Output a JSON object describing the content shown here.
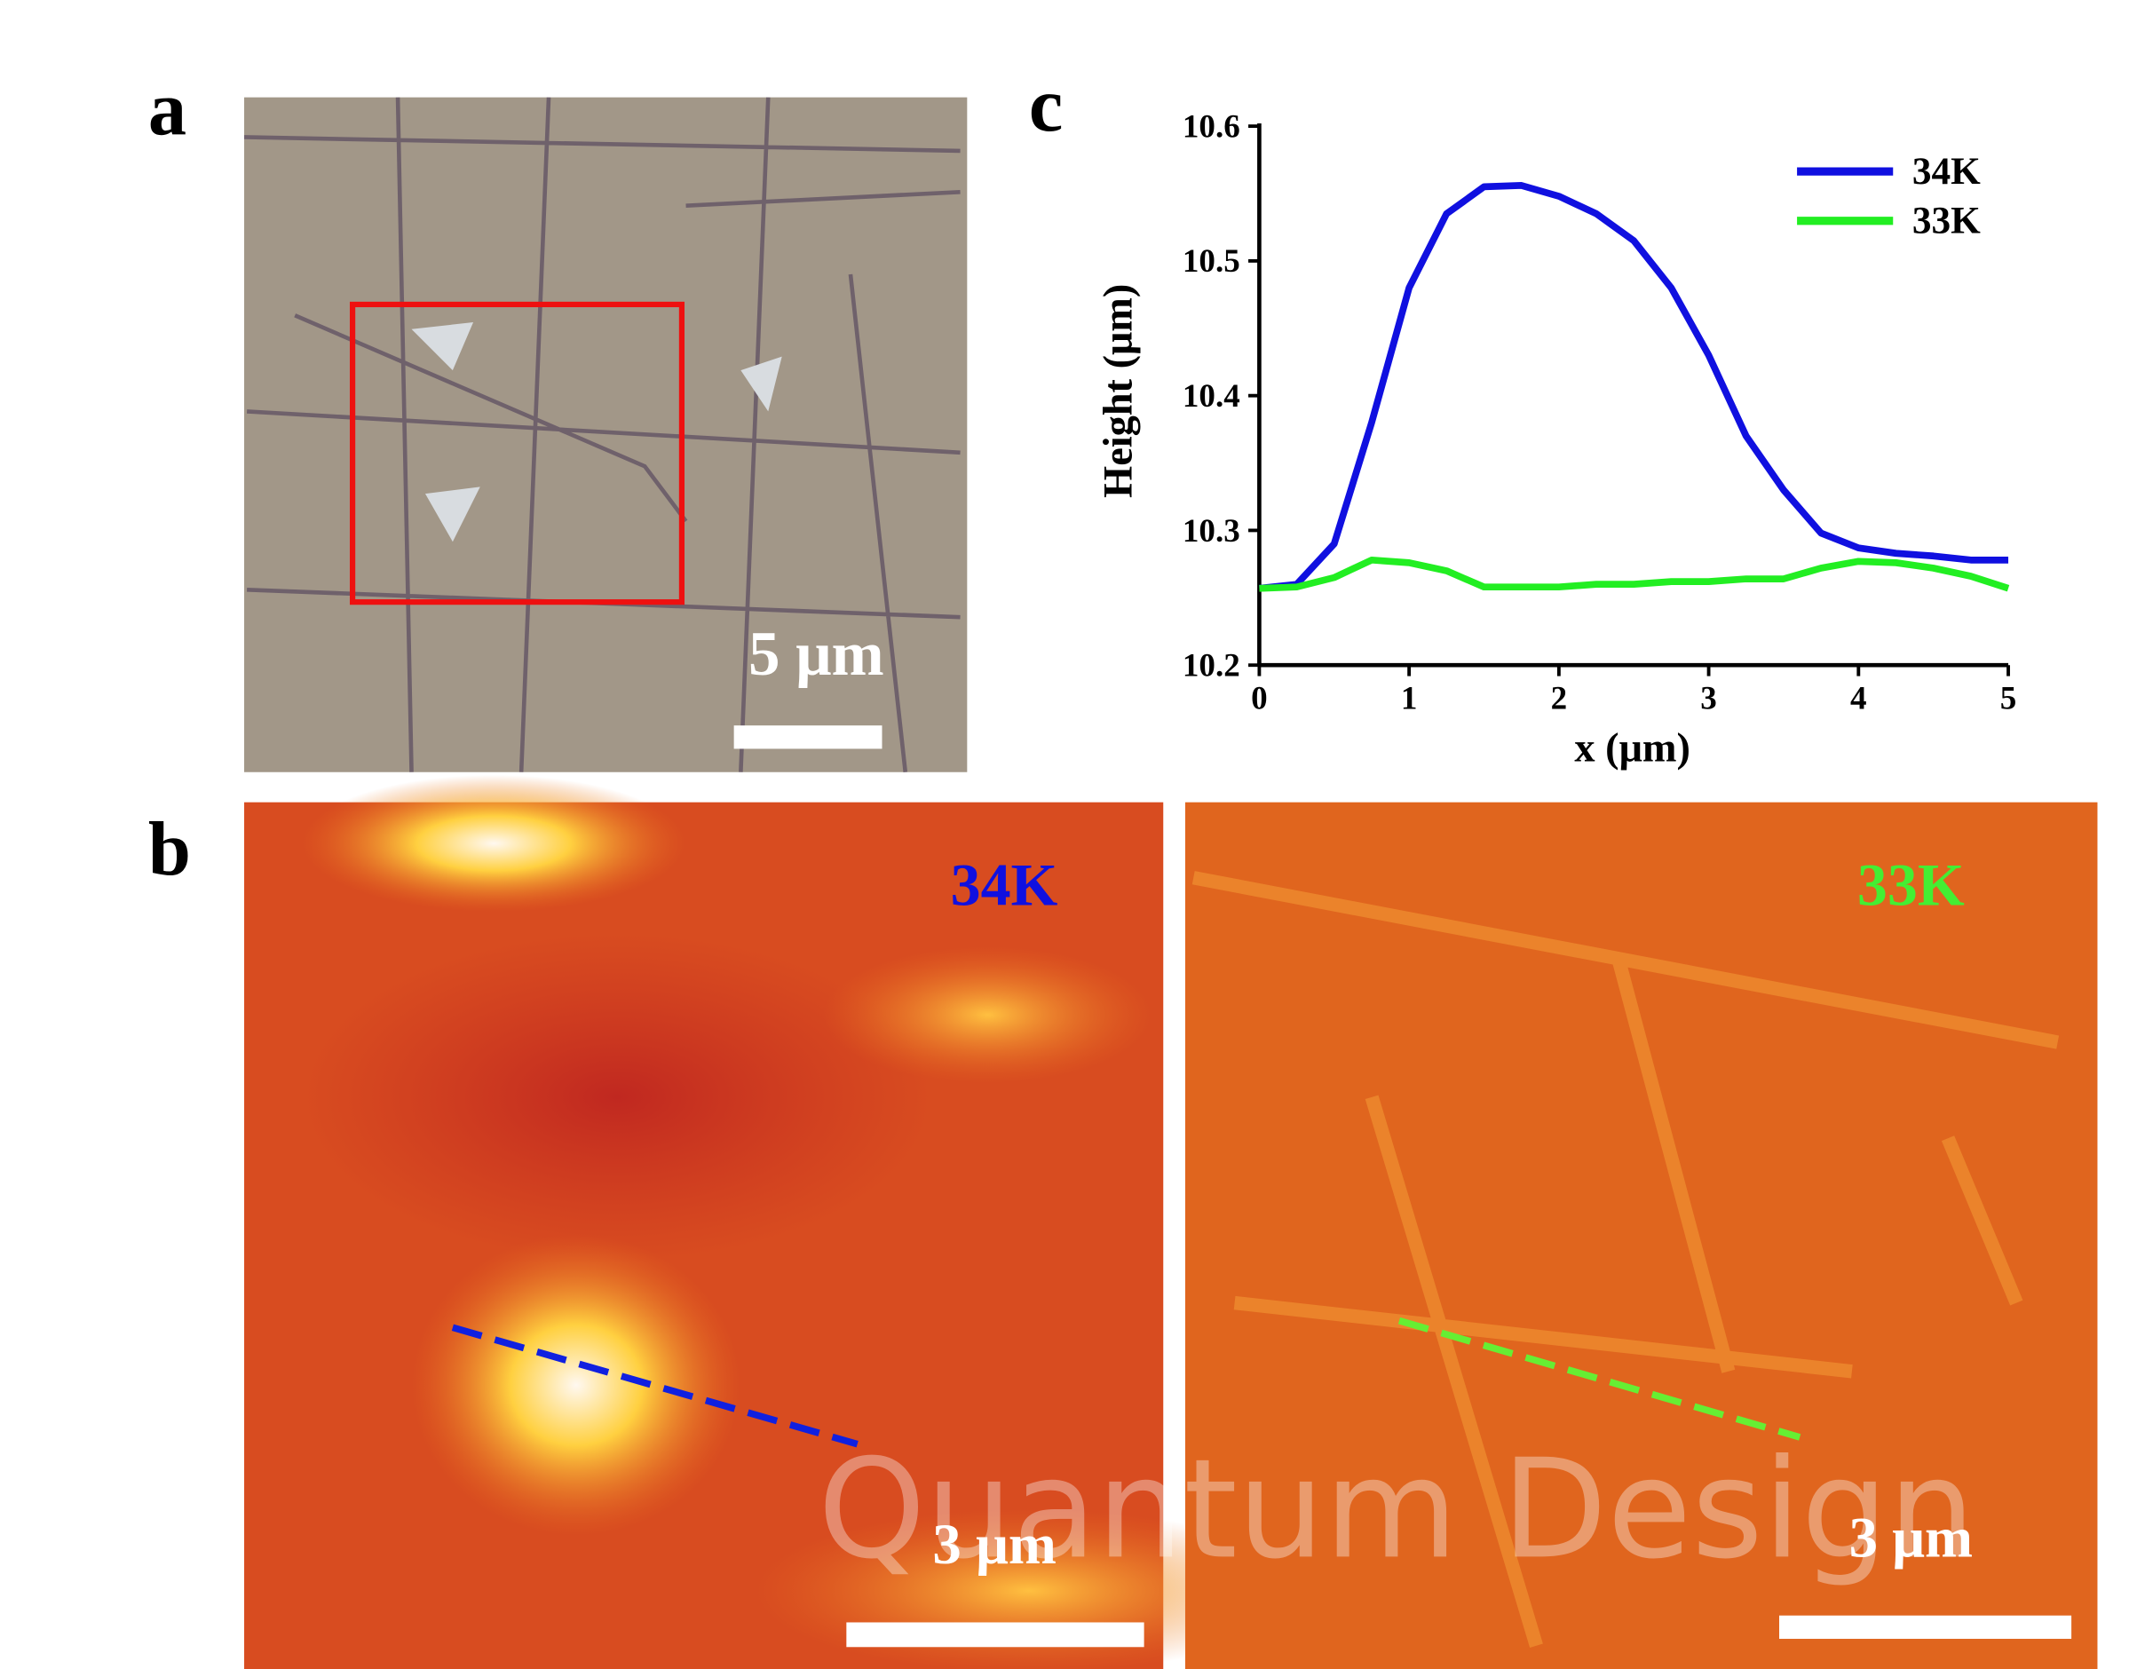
{
  "panels": [
    {
      "label": "a",
      "scale_bar": "5 μm"
    },
    {
      "label": "b",
      "images": [
        {
          "temperature": "34K",
          "scale_bar": "3 μm"
        },
        {
          "temperature": "33K",
          "scale_bar": "3 μm"
        }
      ]
    },
    {
      "label": "c"
    }
  ],
  "watermark": "Quantum Design",
  "chart_data": {
    "type": "line",
    "x_label": "x (μm)",
    "y_label": "Height (μm)",
    "x": [
      0,
      0.25,
      0.5,
      0.75,
      1,
      1.25,
      1.5,
      1.75,
      2,
      2.25,
      2.5,
      2.75,
      3,
      3.25,
      3.5,
      3.75,
      4,
      4.25,
      4.5,
      4.75,
      5
    ],
    "series": [
      {
        "name": "34K",
        "color": "#1010e0",
        "values": [
          10.257,
          10.26,
          10.29,
          10.38,
          10.48,
          10.535,
          10.555,
          10.556,
          10.548,
          10.535,
          10.515,
          10.48,
          10.43,
          10.37,
          10.33,
          10.298,
          10.287,
          10.283,
          10.281,
          10.278,
          10.278
        ]
      },
      {
        "name": "33K",
        "color": "#22ee22",
        "values": [
          10.257,
          10.258,
          10.265,
          10.278,
          10.276,
          10.27,
          10.258,
          10.258,
          10.258,
          10.26,
          10.26,
          10.262,
          10.262,
          10.264,
          10.264,
          10.272,
          10.277,
          10.276,
          10.272,
          10.266,
          10.257
        ]
      }
    ],
    "xlim": [
      0,
      5
    ],
    "xticks": [
      0,
      1,
      2,
      3,
      4,
      5
    ],
    "ylim": [
      10.2,
      10.6
    ],
    "yticks": [
      10.2,
      10.3,
      10.4,
      10.5,
      10.6
    ],
    "legend": "upper right"
  }
}
